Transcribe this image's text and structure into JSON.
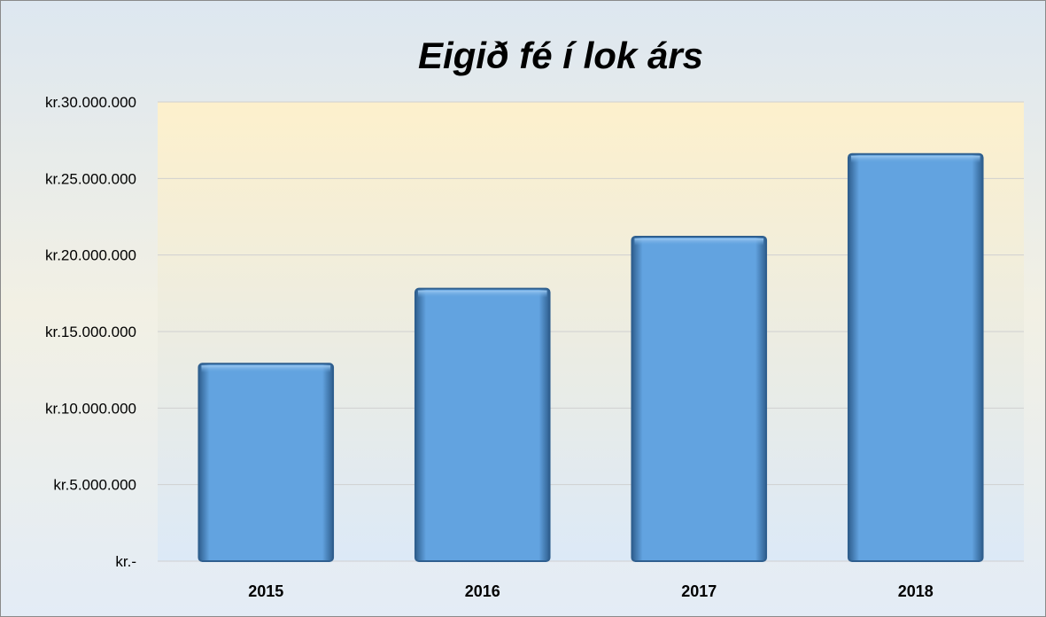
{
  "chart_data": {
    "type": "bar",
    "title": "Eigið fé í lok árs",
    "categories": [
      "2015",
      "2016",
      "2017",
      "2018"
    ],
    "values": [
      12900000,
      17800000,
      21200000,
      26600000
    ],
    "ylim": [
      0,
      30000000
    ],
    "ytick_values": [
      0,
      5000000,
      10000000,
      15000000,
      20000000,
      25000000,
      30000000
    ],
    "ytick_labels": [
      "kr.-",
      "kr.5.000.000",
      "kr.10.000.000",
      "kr.15.000.000",
      "kr.20.000.000",
      "kr.25.000.000",
      "kr.30.000.000"
    ],
    "grid": true,
    "legend": "none",
    "colors": {
      "bar": "#62a3e0",
      "bar_edge": "#2f5f8f",
      "plot_top": "#fdf0cc",
      "plot_bottom": "#dce9f7",
      "grid": "#d0d0d0"
    }
  }
}
